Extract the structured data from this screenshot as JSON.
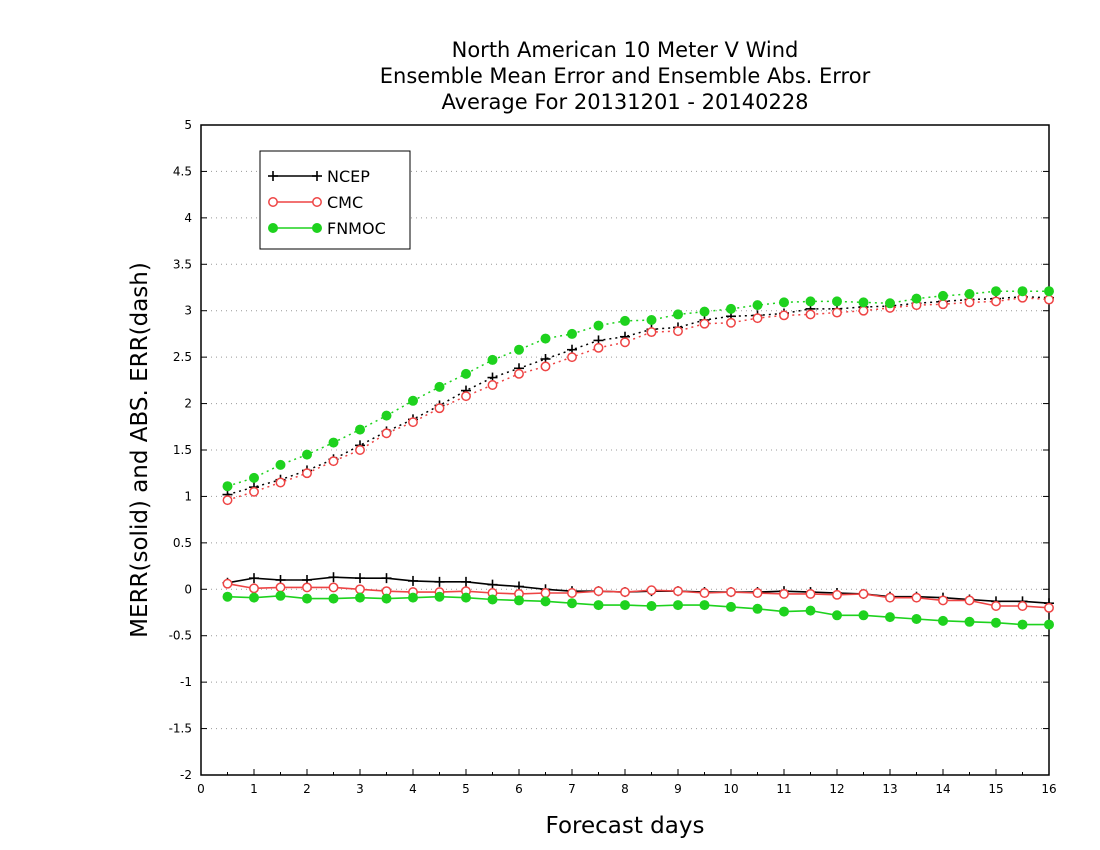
{
  "chart_data": {
    "type": "line",
    "title": [
      "North American 10 Meter V Wind",
      "Ensemble Mean Error and Ensemble Abs. Error",
      "Average For 20131201 - 20140228"
    ],
    "xlabel": "Forecast days",
    "ylabel": "MERR(solid) and ABS. ERR(dash)",
    "xlim": [
      0,
      16
    ],
    "ylim": [
      -2,
      5
    ],
    "xticks": [
      0,
      1,
      2,
      3,
      4,
      5,
      6,
      7,
      8,
      9,
      10,
      11,
      12,
      13,
      14,
      15,
      16
    ],
    "yticks": [
      -2,
      -1.5,
      -1,
      -0.5,
      0,
      0.5,
      1,
      1.5,
      2,
      2.5,
      3,
      3.5,
      4,
      4.5,
      5
    ],
    "ytick_labels": [
      "-2",
      "-1.5",
      "-1",
      "-0.5",
      "0",
      "0.5",
      "1",
      "1.5",
      "2",
      "2.5",
      "3",
      "3.5",
      "4",
      "4.5",
      "5"
    ],
    "grid": "dotted",
    "legend_position": "top-left",
    "x": [
      0.5,
      1,
      1.5,
      2,
      2.5,
      3,
      3.5,
      4,
      4.5,
      5,
      5.5,
      6,
      6.5,
      7,
      7.5,
      8,
      8.5,
      9,
      9.5,
      10,
      10.5,
      11,
      11.5,
      12,
      12.5,
      13,
      13.5,
      14,
      14.5,
      15,
      15.5,
      16
    ],
    "series": [
      {
        "name": "NCEP",
        "color": "#000000",
        "marker": "plus",
        "merr": [
          0.07,
          0.12,
          0.1,
          0.1,
          0.13,
          0.12,
          0.12,
          0.09,
          0.08,
          0.08,
          0.05,
          0.03,
          0.0,
          -0.02,
          -0.02,
          -0.03,
          -0.02,
          -0.02,
          -0.03,
          -0.03,
          -0.03,
          -0.02,
          -0.03,
          -0.04,
          -0.05,
          -0.08,
          -0.08,
          -0.09,
          -0.11,
          -0.13,
          -0.13,
          -0.15
        ],
        "abs_err": [
          1.02,
          1.1,
          1.18,
          1.28,
          1.4,
          1.55,
          1.7,
          1.83,
          1.98,
          2.14,
          2.28,
          2.38,
          2.48,
          2.58,
          2.68,
          2.72,
          2.8,
          2.82,
          2.9,
          2.94,
          2.95,
          2.97,
          3.02,
          3.02,
          3.04,
          3.05,
          3.08,
          3.1,
          3.12,
          3.13,
          3.15,
          3.14
        ]
      },
      {
        "name": "CMC",
        "color": "#ee4444",
        "marker": "open-circle",
        "merr": [
          0.06,
          0.01,
          0.02,
          0.02,
          0.02,
          0.0,
          -0.02,
          -0.03,
          -0.03,
          -0.02,
          -0.04,
          -0.05,
          -0.04,
          -0.04,
          -0.02,
          -0.03,
          -0.01,
          -0.02,
          -0.04,
          -0.03,
          -0.04,
          -0.05,
          -0.05,
          -0.06,
          -0.05,
          -0.09,
          -0.09,
          -0.12,
          -0.12,
          -0.18,
          -0.18,
          -0.2
        ],
        "abs_err": [
          0.96,
          1.05,
          1.15,
          1.25,
          1.38,
          1.5,
          1.68,
          1.8,
          1.95,
          2.08,
          2.2,
          2.32,
          2.4,
          2.5,
          2.6,
          2.66,
          2.77,
          2.78,
          2.86,
          2.87,
          2.92,
          2.95,
          2.96,
          2.98,
          3.0,
          3.03,
          3.06,
          3.07,
          3.09,
          3.1,
          3.14,
          3.12
        ]
      },
      {
        "name": "FNMOC",
        "color": "#1ed21e",
        "marker": "filled-circle",
        "merr": [
          -0.08,
          -0.09,
          -0.07,
          -0.1,
          -0.1,
          -0.09,
          -0.1,
          -0.09,
          -0.08,
          -0.09,
          -0.11,
          -0.12,
          -0.13,
          -0.15,
          -0.17,
          -0.17,
          -0.18,
          -0.17,
          -0.17,
          -0.19,
          -0.21,
          -0.24,
          -0.23,
          -0.28,
          -0.28,
          -0.3,
          -0.32,
          -0.34,
          -0.35,
          -0.36,
          -0.38,
          -0.38
        ],
        "abs_err": [
          1.11,
          1.2,
          1.34,
          1.45,
          1.58,
          1.72,
          1.87,
          2.03,
          2.18,
          2.32,
          2.47,
          2.58,
          2.7,
          2.75,
          2.84,
          2.89,
          2.9,
          2.96,
          2.99,
          3.02,
          3.06,
          3.09,
          3.1,
          3.1,
          3.09,
          3.08,
          3.13,
          3.16,
          3.18,
          3.21,
          3.21,
          3.21
        ]
      }
    ]
  }
}
